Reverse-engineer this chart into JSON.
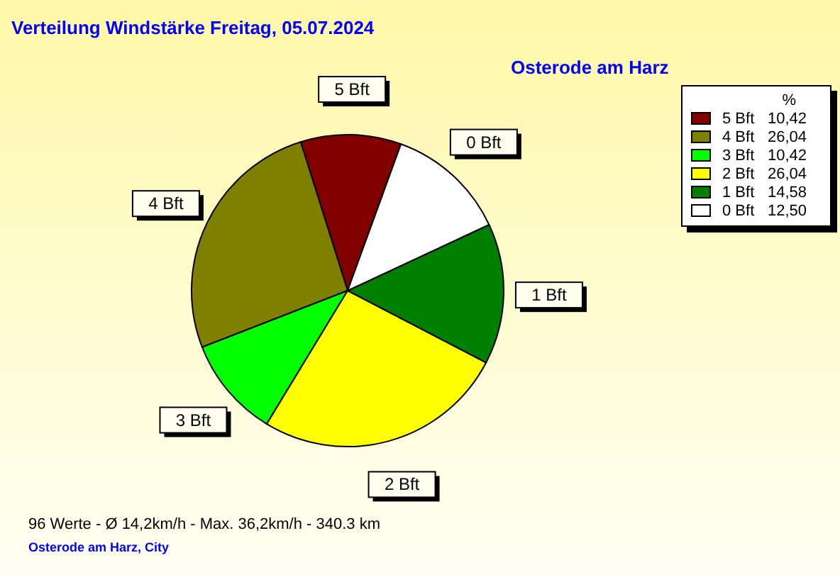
{
  "chart_data": {
    "type": "pie",
    "title": "Verteilung Windstärke  Freitag, 05.07.2024",
    "subtitle": "Osterode am Harz",
    "categories": [
      "5 Bft",
      "4 Bft",
      "3 Bft",
      "2 Bft",
      "1 Bft",
      "0 Bft"
    ],
    "values": [
      10.42,
      26.04,
      10.42,
      26.04,
      14.58,
      12.5
    ],
    "value_labels": [
      "10,42",
      "26,04",
      "10,42",
      "26,04",
      "14,58",
      "12,50"
    ],
    "colors": [
      "#800000",
      "#808000",
      "#00ff00",
      "#ffff00",
      "#008000",
      "#ffffff"
    ],
    "legend": "right",
    "legend_title": "%",
    "annotations": [
      "96 Werte   -   Ø 14,2km/h  -  Max. 36,2km/h   -   340.3 km",
      "Osterode am Harz, City"
    ]
  }
}
